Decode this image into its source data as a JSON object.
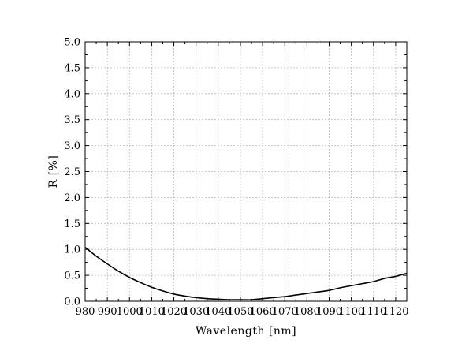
{
  "chart_data": {
    "type": "line",
    "title": "",
    "xlabel": "Wavelength [nm]",
    "ylabel": "R [%]",
    "xlim": [
      980,
      1125
    ],
    "ylim": [
      0,
      5
    ],
    "x_ticks": [
      980,
      990,
      1000,
      1010,
      1020,
      1030,
      1040,
      1050,
      1060,
      1070,
      1080,
      1090,
      1100,
      1110,
      1120
    ],
    "y_ticks": [
      0,
      0.5,
      1,
      1.5,
      2,
      2.5,
      3,
      3.5,
      4,
      4.5,
      5
    ],
    "x_tick_labels": [
      "980",
      "990",
      "1000",
      "1010",
      "1020",
      "1030",
      "1040",
      "1050",
      "1060",
      "1070",
      "1080",
      "1090",
      "1100",
      "1110",
      "1120"
    ],
    "y_tick_labels": [
      "0.0",
      "0.5",
      "1.0",
      "1.5",
      "2.0",
      "2.5",
      "3.0",
      "3.5",
      "4.0",
      "4.5",
      "5.0"
    ],
    "grid": true,
    "line_color": "#000000",
    "grid_color": "#bbbbbb",
    "series": [
      {
        "x": [
          980,
          985,
          990,
          995,
          1000,
          1005,
          1010,
          1015,
          1020,
          1025,
          1030,
          1035,
          1040,
          1045,
          1050,
          1055,
          1060,
          1065,
          1070,
          1075,
          1080,
          1085,
          1090,
          1095,
          1100,
          1105,
          1110,
          1115,
          1120,
          1125
        ],
        "values": [
          1.04,
          0.87,
          0.72,
          0.58,
          0.46,
          0.36,
          0.27,
          0.2,
          0.14,
          0.1,
          0.07,
          0.05,
          0.04,
          0.03,
          0.03,
          0.03,
          0.05,
          0.07,
          0.09,
          0.12,
          0.15,
          0.18,
          0.21,
          0.26,
          0.3,
          0.34,
          0.38,
          0.44,
          0.48,
          0.54
        ]
      }
    ]
  }
}
